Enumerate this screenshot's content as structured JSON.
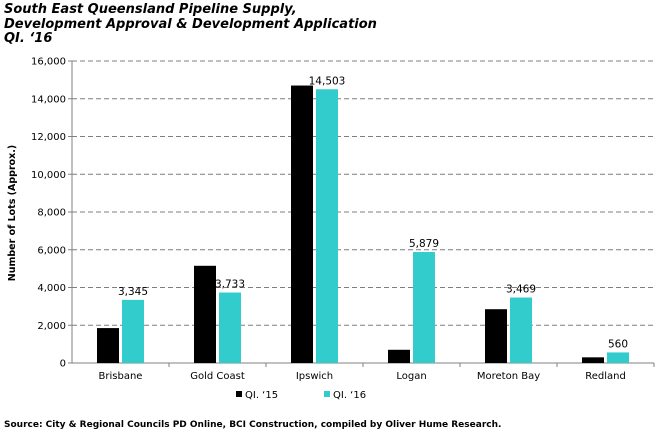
{
  "title_lines": [
    "South East Queensland Pipeline Supply,",
    "Development Approval & Development Application",
    "QI. ‘16"
  ],
  "source": "Source: City & Regional Councils PD Online, BCI Construction, compiled by Oliver Hume Research.",
  "colors": {
    "series1": "#000000",
    "series2": "#33CCCC",
    "grid": "#7f7f7f"
  },
  "chart_data": {
    "type": "bar",
    "title": "South East Queensland Pipeline Supply, Development Approval & Development Application QI. ‘16",
    "ylabel": "Number of Lots (Approx.)",
    "xlabel": "",
    "ylim": [
      0,
      16000
    ],
    "yticks": [
      0,
      2000,
      4000,
      6000,
      8000,
      10000,
      12000,
      14000,
      16000
    ],
    "ytick_labels": [
      "0",
      "2,000",
      "4,000",
      "6,000",
      "8,000",
      "10,000",
      "12,000",
      "14,000",
      "16,000"
    ],
    "grid": true,
    "legend_position": "bottom",
    "categories": [
      "Brisbane",
      "Gold Coast",
      "Ipswich",
      "Logan",
      "Moreton Bay",
      "Redland"
    ],
    "series": [
      {
        "name": "QI. ‘15",
        "values": [
          1850,
          5150,
          14700,
          700,
          2850,
          300
        ],
        "labels": [
          "",
          "",
          "",
          "",
          "",
          ""
        ]
      },
      {
        "name": "QI. ‘16",
        "values": [
          3345,
          3733,
          14503,
          5879,
          3469,
          560
        ],
        "labels": [
          "3,345",
          "3,733",
          "14,503",
          "5,879",
          "3,469",
          "560"
        ]
      }
    ]
  }
}
